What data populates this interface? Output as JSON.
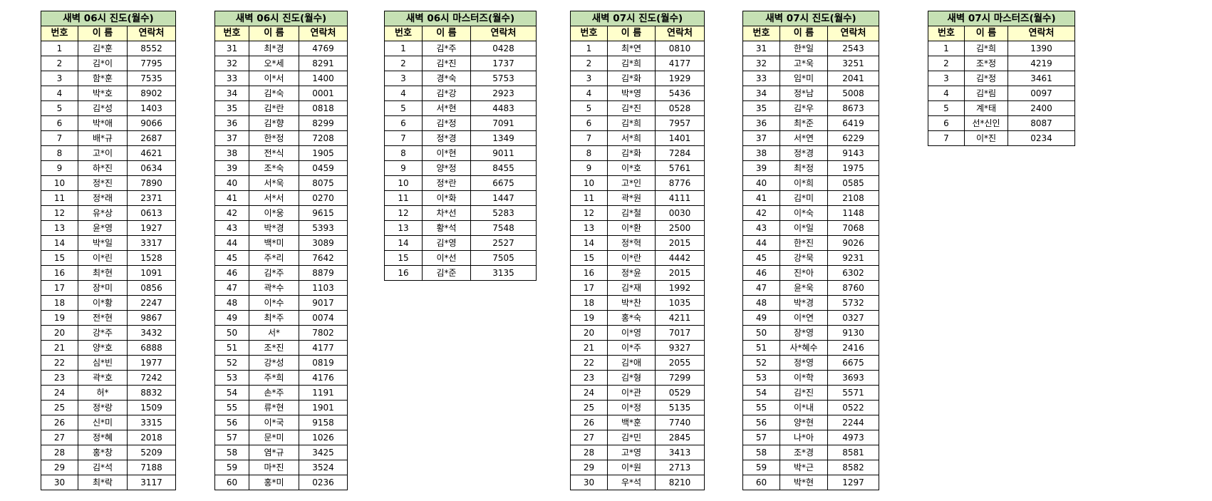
{
  "colors": {
    "title_bg": "#c6e0b4",
    "header_bg": "#ffffcc"
  },
  "tables": [
    {
      "title": "새벽 06시 진도(월수)",
      "headers": [
        "번호",
        "이 름",
        "연락처"
      ],
      "rows": [
        [
          "1",
          "김*훈",
          "8552"
        ],
        [
          "2",
          "김*이",
          "7795"
        ],
        [
          "3",
          "함*훈",
          "7535"
        ],
        [
          "4",
          "박*호",
          "8902"
        ],
        [
          "5",
          "김*성",
          "1403"
        ],
        [
          "6",
          "박*애",
          "9066"
        ],
        [
          "7",
          "배*규",
          "2687"
        ],
        [
          "8",
          "고*이",
          "4621"
        ],
        [
          "9",
          "하*진",
          "0634"
        ],
        [
          "10",
          "정*진",
          "7890"
        ],
        [
          "11",
          "정*래",
          "2371"
        ],
        [
          "12",
          "유*상",
          "0613"
        ],
        [
          "13",
          "윤*영",
          "1927"
        ],
        [
          "14",
          "박*일",
          "3317"
        ],
        [
          "15",
          "이*린",
          "1528"
        ],
        [
          "16",
          "최*현",
          "1091"
        ],
        [
          "17",
          "장*미",
          "0856"
        ],
        [
          "18",
          "이*황",
          "2247"
        ],
        [
          "19",
          "전*현",
          "9867"
        ],
        [
          "20",
          "강*주",
          "3432"
        ],
        [
          "21",
          "양*호",
          "6888"
        ],
        [
          "22",
          "심*빈",
          "1977"
        ],
        [
          "23",
          "곽*호",
          "7242"
        ],
        [
          "24",
          "허*",
          "8832"
        ],
        [
          "25",
          "정*랑",
          "1509"
        ],
        [
          "26",
          "신*미",
          "3315"
        ],
        [
          "27",
          "정*혜",
          "2018"
        ],
        [
          "28",
          "홍*창",
          "5209"
        ],
        [
          "29",
          "김*석",
          "7188"
        ],
        [
          "30",
          "최*락",
          "3117"
        ]
      ]
    },
    {
      "title": "새벽 06시 진도(월수)",
      "headers": [
        "번호",
        "이 름",
        "연락처"
      ],
      "rows": [
        [
          "31",
          "최*경",
          "4769"
        ],
        [
          "32",
          "오*세",
          "8291"
        ],
        [
          "33",
          "이*서",
          "1400"
        ],
        [
          "34",
          "김*숙",
          "0001"
        ],
        [
          "35",
          "김*란",
          "0818"
        ],
        [
          "36",
          "김*향",
          "8299"
        ],
        [
          "37",
          "한*정",
          "7208"
        ],
        [
          "38",
          "전*식",
          "1905"
        ],
        [
          "39",
          "조*숙",
          "0459"
        ],
        [
          "40",
          "서*욱",
          "8075"
        ],
        [
          "41",
          "서*서",
          "0270"
        ],
        [
          "42",
          "이*웅",
          "9615"
        ],
        [
          "43",
          "박*경",
          "5393"
        ],
        [
          "44",
          "백*미",
          "3089"
        ],
        [
          "45",
          "주*리",
          "7642"
        ],
        [
          "46",
          "김*주",
          "8879"
        ],
        [
          "47",
          "곽*수",
          "1103"
        ],
        [
          "48",
          "이*수",
          "9017"
        ],
        [
          "49",
          "최*주",
          "0074"
        ],
        [
          "50",
          "서*",
          "7802"
        ],
        [
          "51",
          "조*진",
          "4177"
        ],
        [
          "52",
          "강*성",
          "0819"
        ],
        [
          "53",
          "주*희",
          "4176"
        ],
        [
          "54",
          "손*주",
          "1191"
        ],
        [
          "55",
          "류*현",
          "1901"
        ],
        [
          "56",
          "이*국",
          "9158"
        ],
        [
          "57",
          "문*미",
          "1026"
        ],
        [
          "58",
          "염*규",
          "3425"
        ],
        [
          "59",
          "마*진",
          "3524"
        ],
        [
          "60",
          "홍*미",
          "0236"
        ]
      ]
    },
    {
      "title": "새벽 06시 마스터즈(월수)",
      "headers": [
        "번호",
        "이 름",
        "연락처"
      ],
      "rows": [
        [
          "1",
          "김*주",
          "0428"
        ],
        [
          "2",
          "김*진",
          "1737"
        ],
        [
          "3",
          "경*숙",
          "5753"
        ],
        [
          "4",
          "김*강",
          "2923"
        ],
        [
          "5",
          "서*현",
          "4483"
        ],
        [
          "6",
          "김*정",
          "7091"
        ],
        [
          "7",
          "정*경",
          "1349"
        ],
        [
          "8",
          "이*현",
          "9011"
        ],
        [
          "9",
          "양*정",
          "8455"
        ],
        [
          "10",
          "정*란",
          "6675"
        ],
        [
          "11",
          "이*화",
          "1447"
        ],
        [
          "12",
          "차*선",
          "5283"
        ],
        [
          "13",
          "황*석",
          "7548"
        ],
        [
          "14",
          "김*영",
          "2527"
        ],
        [
          "15",
          "이*선",
          "7505"
        ],
        [
          "16",
          "김*준",
          "3135"
        ]
      ]
    },
    {
      "title": "새벽 07시 진도(월수)",
      "headers": [
        "번호",
        "이 름",
        "연락처"
      ],
      "rows": [
        [
          "1",
          "최*연",
          "0810"
        ],
        [
          "2",
          "김*희",
          "4177"
        ],
        [
          "3",
          "김*화",
          "1929"
        ],
        [
          "4",
          "박*영",
          "5436"
        ],
        [
          "5",
          "김*진",
          "0528"
        ],
        [
          "6",
          "김*희",
          "7957"
        ],
        [
          "7",
          "서*희",
          "1401"
        ],
        [
          "8",
          "김*화",
          "7284"
        ],
        [
          "9",
          "이*호",
          "5761"
        ],
        [
          "10",
          "고*인",
          "8776"
        ],
        [
          "11",
          "곽*원",
          "4111"
        ],
        [
          "12",
          "김*철",
          "0030"
        ],
        [
          "13",
          "이*환",
          "2500"
        ],
        [
          "14",
          "정*혁",
          "2015"
        ],
        [
          "15",
          "이*란",
          "4442"
        ],
        [
          "16",
          "정*윤",
          "2015"
        ],
        [
          "17",
          "김*재",
          "1992"
        ],
        [
          "18",
          "박*찬",
          "1035"
        ],
        [
          "19",
          "홍*숙",
          "4211"
        ],
        [
          "20",
          "이*영",
          "7017"
        ],
        [
          "21",
          "이*주",
          "9327"
        ],
        [
          "22",
          "김*애",
          "2055"
        ],
        [
          "23",
          "김*형",
          "7299"
        ],
        [
          "24",
          "이*관",
          "0529"
        ],
        [
          "25",
          "이*정",
          "5135"
        ],
        [
          "26",
          "백*훈",
          "7740"
        ],
        [
          "27",
          "김*민",
          "2845"
        ],
        [
          "28",
          "고*영",
          "3413"
        ],
        [
          "29",
          "이*원",
          "2713"
        ],
        [
          "30",
          "우*석",
          "8210"
        ]
      ]
    },
    {
      "title": "새벽 07시 진도(월수)",
      "headers": [
        "번호",
        "이 름",
        "연락처"
      ],
      "rows": [
        [
          "31",
          "한*일",
          "2543"
        ],
        [
          "32",
          "고*욱",
          "3251"
        ],
        [
          "33",
          "임*미",
          "2041"
        ],
        [
          "34",
          "정*남",
          "5008"
        ],
        [
          "35",
          "김*우",
          "8673"
        ],
        [
          "36",
          "최*준",
          "6419"
        ],
        [
          "37",
          "서*연",
          "6229"
        ],
        [
          "38",
          "정*경",
          "9143"
        ],
        [
          "39",
          "최*정",
          "1975"
        ],
        [
          "40",
          "이*희",
          "0585"
        ],
        [
          "41",
          "김*미",
          "2108"
        ],
        [
          "42",
          "이*숙",
          "1148"
        ],
        [
          "43",
          "이*일",
          "7068"
        ],
        [
          "44",
          "한*진",
          "9026"
        ],
        [
          "45",
          "강*묵",
          "9231"
        ],
        [
          "46",
          "진*아",
          "6302"
        ],
        [
          "47",
          "윤*욱",
          "8760"
        ],
        [
          "48",
          "박*경",
          "5732"
        ],
        [
          "49",
          "이*연",
          "0327"
        ],
        [
          "50",
          "장*영",
          "9130"
        ],
        [
          "51",
          "사*혜수",
          "2416"
        ],
        [
          "52",
          "정*영",
          "6675"
        ],
        [
          "53",
          "이*학",
          "3693"
        ],
        [
          "54",
          "김*진",
          "5571"
        ],
        [
          "55",
          "이*내",
          "0522"
        ],
        [
          "56",
          "양*현",
          "2244"
        ],
        [
          "57",
          "나*아",
          "4973"
        ],
        [
          "58",
          "조*경",
          "8581"
        ],
        [
          "59",
          "박*근",
          "8582"
        ],
        [
          "60",
          "박*현",
          "1297"
        ]
      ]
    },
    {
      "title": "새벽 07시 마스터즈(월수)",
      "headers": [
        "번호",
        "이 름",
        "연락처"
      ],
      "rows": [
        [
          "1",
          "김*희",
          "1390"
        ],
        [
          "2",
          "조*정",
          "4219"
        ],
        [
          "3",
          "김*정",
          "3461"
        ],
        [
          "4",
          "김*림",
          "0097"
        ],
        [
          "5",
          "계*태",
          "2400"
        ],
        [
          "6",
          "선*신인",
          "8087"
        ],
        [
          "7",
          "이*진",
          "0234"
        ]
      ]
    }
  ]
}
